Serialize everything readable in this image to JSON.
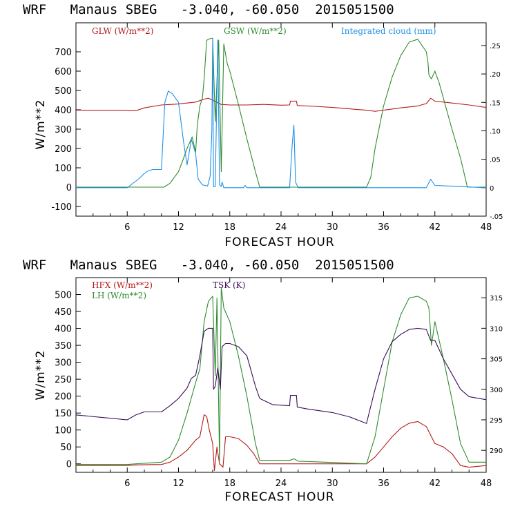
{
  "chart_data": [
    {
      "type": "line",
      "title": "WRF   Manaus SBEG   -3.040, -60.050  2015051500",
      "xlabel": "FORECAST HOUR",
      "ylabel": "W/m**2",
      "xlim": [
        0,
        48
      ],
      "xticks": [
        6,
        12,
        18,
        24,
        30,
        36,
        42,
        48
      ],
      "ylim": [
        -150,
        850
      ],
      "yticks": [
        -100,
        0,
        100,
        200,
        300,
        400,
        500,
        600,
        700
      ],
      "y2lim": [
        -0.05,
        0.29
      ],
      "y2ticks": [
        -0.05,
        0,
        0.05,
        0.1,
        0.15,
        0.2,
        0.25
      ],
      "y2ticklabels": [
        "-.05",
        "0",
        ".05",
        ".10",
        ".15",
        ".20",
        ".25"
      ],
      "series": [
        {
          "name": "GLW (W/m**2)",
          "color": "#b41a1a",
          "axis": "left",
          "x": [
            0,
            5,
            7,
            8,
            10,
            12,
            14,
            15,
            15.5,
            16,
            17,
            18,
            20,
            22,
            24,
            25,
            25.1,
            25.8,
            25.9,
            28,
            30,
            32,
            34,
            35,
            36,
            38,
            40,
            41,
            41.5,
            42,
            43,
            44,
            46,
            48
          ],
          "y": [
            398,
            398,
            395,
            410,
            425,
            430,
            440,
            455,
            460,
            450,
            428,
            425,
            425,
            428,
            424,
            425,
            445,
            445,
            422,
            418,
            412,
            405,
            398,
            392,
            398,
            410,
            420,
            432,
            460,
            445,
            440,
            435,
            425,
            412
          ]
        },
        {
          "name": "GSW (W/m**2)",
          "color": "#2e8b2e",
          "axis": "left",
          "x": [
            0,
            10.3,
            11,
            12,
            12.6,
            13,
            13.6,
            14,
            14.2,
            14.5,
            14.8,
            15,
            15.3,
            15.8,
            16,
            16.3,
            16.7,
            17,
            17.3,
            17.7,
            18,
            19,
            20,
            21,
            21.5,
            34,
            34.5,
            35,
            36,
            37,
            38,
            39,
            40,
            41,
            41.2,
            41.3,
            41.6,
            42,
            42.5,
            43,
            44,
            45,
            45.8,
            48
          ],
          "y": [
            0,
            0,
            20,
            80,
            150,
            200,
            260,
            180,
            320,
            420,
            460,
            560,
            760,
            770,
            770,
            340,
            760,
            80,
            740,
            640,
            600,
            430,
            250,
            80,
            0,
            0,
            50,
            200,
            420,
            570,
            680,
            750,
            765,
            700,
            640,
            580,
            560,
            600,
            540,
            460,
            300,
            150,
            0,
            0
          ]
        },
        {
          "name": "Integrated cloud (mm)",
          "color": "#1e90e6",
          "axis": "right",
          "x": [
            0,
            4.5,
            6,
            7.3,
            8,
            8.5,
            9,
            10,
            10.4,
            10.8,
            11.3,
            12,
            12.6,
            13,
            13.5,
            14,
            14.3,
            14.8,
            15.4,
            15.7,
            15.9,
            16,
            16.1,
            16.3,
            16.6,
            16.8,
            17,
            17.1,
            17.3,
            17.5,
            19,
            19.6,
            19.8,
            20,
            25,
            25.3,
            25.5,
            25.7,
            26,
            41,
            41.5,
            42,
            48
          ],
          "y": [
            0,
            0,
            0,
            0.015,
            0.025,
            0.03,
            0.032,
            0.032,
            0.15,
            0.17,
            0.165,
            0.15,
            0.08,
            0.04,
            0.085,
            0.06,
            0.015,
            0.005,
            0.003,
            0.02,
            0.1,
            0.26,
            0.002,
            0.002,
            0.26,
            0.005,
            0.002,
            0.01,
            0,
            0,
            0,
            0,
            0.004,
            0,
            0,
            0.075,
            0.11,
            0.01,
            0,
            0,
            0.015,
            0.004,
            0
          ]
        }
      ]
    },
    {
      "type": "line",
      "title": "WRF   Manaus SBEG   -3.040, -60.050  2015051500",
      "xlabel": "FORECAST HOUR",
      "ylabel": "W/m**2",
      "xlim": [
        0,
        48
      ],
      "xticks": [
        6,
        12,
        18,
        24,
        30,
        36,
        42,
        48
      ],
      "ylim": [
        -25,
        550
      ],
      "yticks": [
        0,
        50,
        100,
        150,
        200,
        250,
        300,
        350,
        400,
        450,
        500
      ],
      "y2lim": [
        286.4,
        318.3
      ],
      "y2ticks": [
        290,
        295,
        300,
        305,
        310,
        315
      ],
      "series": [
        {
          "name": "HFX (W/m**2)",
          "color": "#b41a1a",
          "axis": "left",
          "x": [
            0,
            6,
            7,
            10,
            11,
            12,
            13,
            14,
            14.5,
            15,
            15.3,
            15.6,
            16,
            16.2,
            16.5,
            16.8,
            17.2,
            17.5,
            18,
            19,
            20,
            20.8,
            21.5,
            34,
            35,
            36,
            37,
            38,
            39,
            40,
            41,
            42,
            43,
            44,
            45,
            46,
            48
          ],
          "y": [
            -5,
            -5,
            -3,
            -2,
            5,
            20,
            40,
            70,
            80,
            145,
            140,
            100,
            60,
            -20,
            50,
            0,
            -10,
            80,
            80,
            75,
            55,
            30,
            0,
            0,
            20,
            50,
            80,
            105,
            120,
            125,
            110,
            60,
            50,
            30,
            -5,
            -10,
            -5
          ]
        },
        {
          "name": "LH (W/m**2)",
          "color": "#2e8b2e",
          "axis": "left",
          "x": [
            0,
            6,
            7,
            10,
            11,
            12,
            13,
            14,
            14.5,
            15,
            15.5,
            16,
            16.3,
            16.5,
            16.8,
            17,
            17.3,
            18,
            19,
            20,
            21,
            21.5,
            25,
            25.5,
            26,
            34,
            35,
            36,
            37,
            38,
            39,
            40,
            41,
            41.3,
            41.6,
            42,
            43,
            44,
            45,
            46,
            48
          ],
          "y": [
            -2,
            -2,
            0,
            5,
            20,
            70,
            150,
            240,
            280,
            420,
            480,
            495,
            260,
            490,
            10,
            520,
            460,
            420,
            320,
            200,
            60,
            10,
            10,
            15,
            8,
            0,
            80,
            220,
            360,
            440,
            490,
            495,
            480,
            460,
            350,
            420,
            310,
            190,
            60,
            5,
            5
          ]
        },
        {
          "name": "TSK (K)",
          "color": "#3a0c55",
          "axis": "right",
          "x": [
            0,
            3,
            6,
            7,
            8,
            10,
            11,
            12,
            13,
            13.5,
            14,
            14.5,
            15,
            15.5,
            16,
            16.1,
            16.3,
            16.6,
            16.9,
            17.1,
            17.5,
            18,
            19,
            20,
            21,
            21.5,
            23,
            25,
            25.1,
            25.8,
            25.9,
            27,
            30,
            32,
            34,
            34.1,
            35,
            36,
            37,
            38,
            39,
            40,
            41,
            41.5,
            42,
            43,
            44,
            45,
            46,
            48
          ],
          "y": [
            295.8,
            295.4,
            295,
            295.8,
            296.3,
            296.3,
            297.3,
            298.5,
            300.2,
            301.8,
            302.3,
            305.5,
            309.5,
            310,
            310,
            300,
            300.5,
            303.5,
            300,
            307,
            307.5,
            307.5,
            307,
            305.5,
            300.5,
            298.5,
            297.5,
            297.3,
            299,
            299,
            297.1,
            296.8,
            296.2,
            295.5,
            294.4,
            295,
            300,
            305,
            307.8,
            309,
            309.8,
            310,
            309.8,
            308,
            308,
            305,
            302.5,
            300,
            298.8,
            298.3
          ]
        }
      ]
    }
  ]
}
